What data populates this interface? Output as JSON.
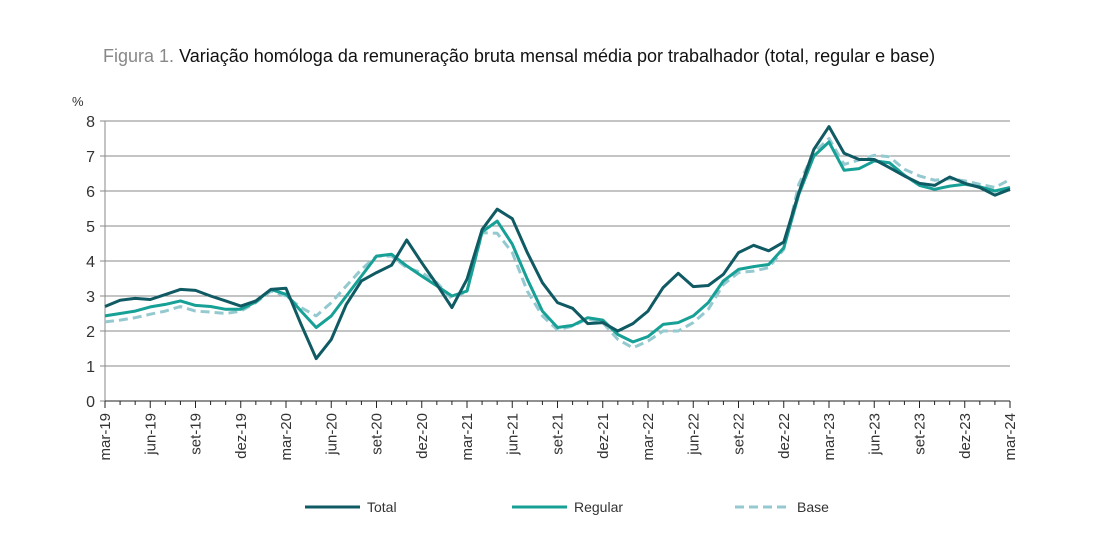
{
  "chart_data": {
    "type": "line",
    "title_prefix": "Figura 1.",
    "title": "Variação homóloga da remuneração bruta mensal média por trabalhador (total, regular e base)",
    "ylabel": "%",
    "ylim": [
      0,
      8
    ],
    "yticks": [
      0,
      1,
      2,
      3,
      4,
      5,
      6,
      7,
      8
    ],
    "grid": true,
    "legend": "bottom",
    "x_tick_labels": [
      "mar-19",
      "jun-19",
      "set-19",
      "dez-19",
      "mar-20",
      "jun-20",
      "set-20",
      "dez-20",
      "mar-21",
      "jun-21",
      "set-21",
      "dez-21",
      "mar-22",
      "jun-22",
      "set-22",
      "dez-22",
      "mar-23",
      "jun-23",
      "set-23",
      "dez-23",
      "mar-24"
    ],
    "x_start": "mar-19",
    "x_end": "mar-24",
    "series": [
      {
        "name": "Total",
        "color": "#0f5a63",
        "style": "solid",
        "values": [
          2.7,
          2.88,
          2.93,
          2.9,
          3.04,
          3.19,
          3.16,
          3.0,
          2.86,
          2.71,
          2.86,
          3.19,
          3.22,
          2.19,
          1.21,
          1.76,
          2.76,
          3.43,
          3.67,
          3.88,
          4.6,
          3.95,
          3.33,
          2.67,
          3.48,
          4.9,
          5.48,
          5.21,
          4.24,
          3.38,
          2.81,
          2.65,
          2.21,
          2.24,
          2.0,
          2.21,
          2.57,
          3.24,
          3.65,
          3.27,
          3.3,
          3.62,
          4.24,
          4.45,
          4.29,
          4.54,
          5.95,
          7.19,
          7.84,
          7.08,
          6.9,
          6.9,
          6.67,
          6.43,
          6.22,
          6.16,
          6.4,
          6.22,
          6.1,
          5.88,
          6.05
        ]
      },
      {
        "name": "Regular",
        "color": "#17a096",
        "style": "solid",
        "values": [
          2.43,
          2.5,
          2.57,
          2.69,
          2.76,
          2.86,
          2.73,
          2.7,
          2.62,
          2.62,
          2.83,
          3.19,
          3.05,
          2.57,
          2.1,
          2.43,
          3.0,
          3.57,
          4.14,
          4.19,
          3.86,
          3.57,
          3.29,
          3.0,
          3.14,
          4.83,
          5.14,
          4.48,
          3.48,
          2.57,
          2.1,
          2.16,
          2.38,
          2.31,
          1.9,
          1.69,
          1.84,
          2.19,
          2.24,
          2.43,
          2.81,
          3.43,
          3.76,
          3.84,
          3.9,
          4.38,
          5.9,
          7.0,
          7.4,
          6.59,
          6.64,
          6.86,
          6.81,
          6.45,
          6.16,
          6.05,
          6.14,
          6.19,
          6.12,
          6.0,
          6.1
        ]
      },
      {
        "name": "Base",
        "color": "#95c9d0",
        "style": "dashed",
        "values": [
          2.26,
          2.31,
          2.38,
          2.48,
          2.57,
          2.7,
          2.57,
          2.54,
          2.5,
          2.57,
          2.81,
          3.14,
          3.0,
          2.67,
          2.43,
          2.81,
          3.29,
          3.76,
          4.14,
          4.14,
          3.81,
          3.67,
          3.38,
          2.92,
          3.14,
          4.81,
          4.79,
          4.24,
          3.14,
          2.43,
          2.03,
          2.14,
          2.35,
          2.24,
          1.76,
          1.52,
          1.71,
          2.0,
          2.0,
          2.24,
          2.62,
          3.33,
          3.67,
          3.71,
          3.81,
          4.33,
          6.19,
          7.1,
          7.5,
          6.76,
          6.89,
          7.02,
          6.98,
          6.62,
          6.43,
          6.31,
          6.35,
          6.29,
          6.19,
          6.1,
          6.33
        ]
      }
    ]
  }
}
